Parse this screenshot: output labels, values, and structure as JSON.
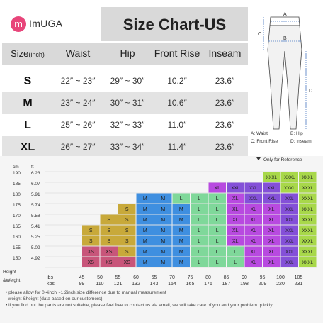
{
  "brand": {
    "logo_letter": "m",
    "name": "ImUGA"
  },
  "title": "Size Chart-US",
  "table": {
    "size_label": "Size",
    "size_unit": "(inch)",
    "headers": [
      "Waist",
      "Hip",
      "Front Rise",
      "Inseam"
    ],
    "rows": [
      {
        "size": "S",
        "waist": "22″ ~ 23″",
        "hip": "29″ ~ 30″",
        "rise": "10.2″",
        "inseam": "23.6″"
      },
      {
        "size": "M",
        "waist": "23″ ~ 24″",
        "hip": "30″ ~ 31″",
        "rise": "10.6″",
        "inseam": "23.6″"
      },
      {
        "size": "L",
        "waist": "25″ ~ 26″",
        "hip": "32″ ~ 33″",
        "rise": "11.0″",
        "inseam": "23.6″"
      },
      {
        "size": "XL",
        "waist": "26″ ~ 27″",
        "hip": "33″ ~ 34″",
        "rise": "11.4″",
        "inseam": "23.6″"
      }
    ]
  },
  "diagram": {
    "markers": [
      "A",
      "B",
      "C",
      "D"
    ],
    "legend": [
      {
        "key": "A:",
        "label": "Waist"
      },
      {
        "key": "B:",
        "label": "Hip"
      },
      {
        "key": "C:",
        "label": "Front Rise"
      },
      {
        "key": "D:",
        "label": "Inseam"
      }
    ]
  },
  "chart_data": {
    "type": "heatmap",
    "title": "",
    "reference_note": "Only for Reference",
    "y_units": [
      "cm",
      "ft"
    ],
    "height_cm": [
      "190",
      "185",
      "180",
      "175",
      "170",
      "165",
      "160",
      "155",
      "150"
    ],
    "height_ft": [
      "6.23",
      "6.07",
      "5.91",
      "5.74",
      "5.58",
      "5.41",
      "5.25",
      "5.09",
      "4.92"
    ],
    "x_label": "Height",
    "x_sub_label": "&Weight",
    "x_units": [
      "ibs",
      "kbs"
    ],
    "weight_lbs": [
      "45",
      "50",
      "55",
      "60",
      "65",
      "70",
      "75",
      "80",
      "85",
      "90",
      "95",
      "100",
      "105"
    ],
    "weight_kg": [
      "99",
      "110",
      "121",
      "132",
      "143",
      "154",
      "165",
      "176",
      "187",
      "198",
      "209",
      "220",
      "231"
    ],
    "size_colors": {
      "XS": "#c8557a",
      "S": "#c8a93a",
      "M": "#3f8fe0",
      "L": "#7fd89a",
      "XL": "#b84ae0",
      "XXL": "#8450d8",
      "XXXL": "#a8d84a"
    },
    "columns": [
      [],
      [
        "XS",
        "XS",
        "S",
        "S"
      ],
      [
        "XS",
        "XS",
        "S",
        "S",
        "S"
      ],
      [
        "XS",
        "S",
        "S",
        "S",
        "S",
        "S"
      ],
      [
        "M",
        "M",
        "M",
        "M",
        "M",
        "M",
        "M"
      ],
      [
        "M",
        "M",
        "M",
        "M",
        "M",
        "M",
        "M"
      ],
      [
        "M",
        "M",
        "M",
        "M",
        "M",
        "M",
        "L"
      ],
      [
        "L",
        "L",
        "L",
        "L",
        "L",
        "L",
        "L"
      ],
      [
        "L",
        "L",
        "L",
        "L",
        "L",
        "L",
        "L",
        "XL"
      ],
      [
        "L",
        "L",
        "XL",
        "XL",
        "XL",
        "XL",
        "XL",
        "XXL"
      ],
      [
        "XL",
        "XL",
        "XL",
        "XL",
        "XL",
        "XL",
        "XXL",
        "XXL"
      ],
      [
        "XL",
        "XL",
        "XL",
        "XL",
        "XL",
        "XL",
        "XXL",
        "XXL",
        "XXXL"
      ],
      [
        "XXL",
        "XXL",
        "XXL",
        "XXL",
        "XXL",
        "XXL",
        "XXL",
        "XXXL",
        "XXXL"
      ],
      [
        "XXXL",
        "XXXL",
        "XXXL",
        "XXXL",
        "XXXL",
        "XXXL",
        "XXXL",
        "XXXL",
        "XXXL"
      ]
    ]
  },
  "notes": [
    "please allow for 0.4inch ~1.2inch size difference due to manual measurement",
    "weight &height (data based on our customers)",
    "if you find out the pants are not suitable, please feel free to contact us via email, we will take care of you and your problem quickly"
  ]
}
